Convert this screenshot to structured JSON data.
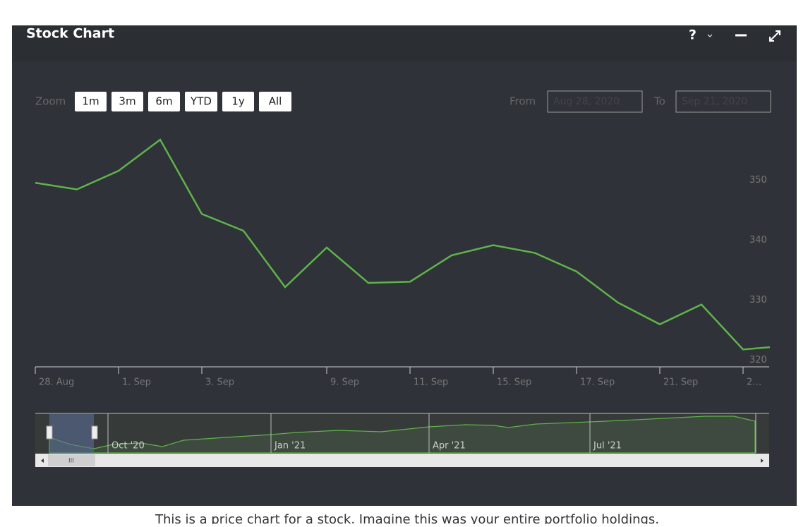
{
  "header": {
    "title": "Stock Chart",
    "help": "?"
  },
  "zoom": {
    "label": "Zoom",
    "buttons": [
      "1m",
      "3m",
      "6m",
      "YTD",
      "1y",
      "All"
    ]
  },
  "range": {
    "from_label": "From",
    "from_value": "Aug 28, 2020",
    "to_label": "To",
    "to_value": "Sep 21, 2020"
  },
  "chart_data": {
    "type": "line",
    "categories": [
      "28. Aug",
      null,
      "1. Sep",
      null,
      "3. Sep",
      null,
      null,
      "9. Sep",
      null,
      "11. Sep",
      null,
      "15. Sep",
      null,
      "17. Sep",
      null,
      "21. Sep",
      null,
      "2…",
      null
    ],
    "values": [
      349.6,
      348.5,
      351.6,
      356.8,
      344.4,
      341.6,
      332.2,
      338.8,
      332.9,
      333.1,
      337.5,
      339.2,
      337.9,
      334.8,
      329.6,
      326.0,
      329.3,
      321.8,
      322.4
    ],
    "color": "#5fb34a",
    "ylim": [
      318.9,
      359.5
    ],
    "yticks": [
      320,
      330,
      340,
      350
    ]
  },
  "navigator": {
    "labels": [
      "Oct '20",
      "Jan '21",
      "Apr '21",
      "Jul '21"
    ]
  },
  "caption": "This is a price chart for a stock. Imagine this was your entire portfolio holdings."
}
